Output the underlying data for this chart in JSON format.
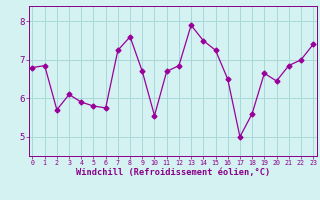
{
  "x": [
    0,
    1,
    2,
    3,
    4,
    5,
    6,
    7,
    8,
    9,
    10,
    11,
    12,
    13,
    14,
    15,
    16,
    17,
    18,
    19,
    20,
    21,
    22,
    23
  ],
  "y": [
    6.8,
    6.85,
    5.7,
    6.1,
    5.9,
    5.8,
    5.75,
    7.25,
    7.6,
    6.7,
    5.55,
    6.7,
    6.85,
    7.9,
    7.5,
    7.25,
    6.5,
    5.0,
    5.6,
    6.65,
    6.45,
    6.85,
    7.0,
    7.4
  ],
  "line_color": "#990099",
  "marker": "D",
  "markersize": 2.5,
  "bg_color": "#d5f2f2",
  "grid_color": "#a8d8d8",
  "xlabel": "Windchill (Refroidissement éolien,°C)",
  "xlabel_color": "#880088",
  "tick_color": "#880088",
  "ylim": [
    4.5,
    8.4
  ],
  "yticks": [
    5,
    6,
    7,
    8
  ],
  "xticks": [
    0,
    1,
    2,
    3,
    4,
    5,
    6,
    7,
    8,
    9,
    10,
    11,
    12,
    13,
    14,
    15,
    16,
    17,
    18,
    19,
    20,
    21,
    22,
    23
  ],
  "xlim": [
    -0.3,
    23.3
  ]
}
